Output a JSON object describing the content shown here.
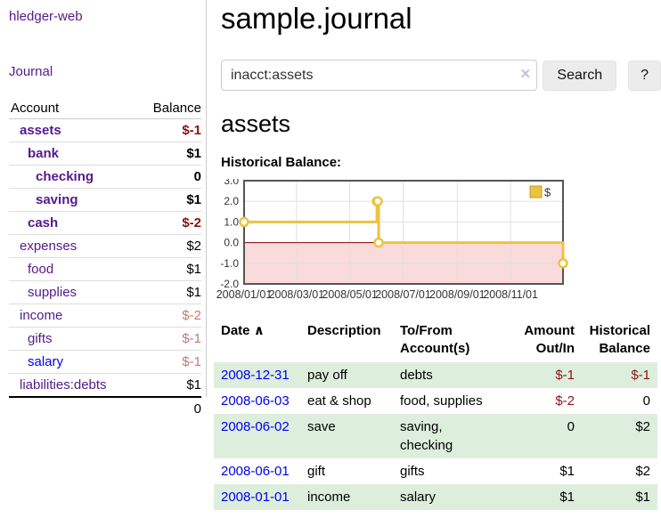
{
  "sidebar": {
    "brand": "hledger-web",
    "nav_journal": "Journal",
    "accounts": {
      "col_account": "Account",
      "col_balance": "Balance",
      "rows": [
        {
          "name": "assets",
          "balance": "$-1",
          "indent": 1,
          "bold": true,
          "balance_style": "neg-strong"
        },
        {
          "name": "bank",
          "balance": "$1",
          "indent": 2,
          "bold": true,
          "balance_style": "pos"
        },
        {
          "name": "checking",
          "balance": "0",
          "indent": 3,
          "bold": true,
          "balance_style": "pos"
        },
        {
          "name": "saving",
          "balance": "$1",
          "indent": 3,
          "bold": true,
          "balance_style": "pos"
        },
        {
          "name": "cash",
          "balance": "$-2",
          "indent": 2,
          "bold": true,
          "balance_style": "neg-strong"
        },
        {
          "name": "expenses",
          "balance": "$2",
          "indent": 1,
          "bold": false,
          "balance_style": "pos"
        },
        {
          "name": "food",
          "balance": "$1",
          "indent": 2,
          "bold": false,
          "balance_style": "pos"
        },
        {
          "name": "supplies",
          "balance": "$1",
          "indent": 2,
          "bold": false,
          "balance_style": "pos"
        },
        {
          "name": "income",
          "balance": "$-2",
          "indent": 1,
          "bold": false,
          "balance_style": "neg-soft"
        },
        {
          "name": "gifts",
          "balance": "$-1",
          "indent": 2,
          "bold": false,
          "balance_style": "neg-soft"
        },
        {
          "name": "salary",
          "balance": "$-1",
          "indent": 2,
          "bold": false,
          "balance_style": "neg-soft",
          "link_style": "blue"
        },
        {
          "name": "liabilities:debts",
          "balance": "$1",
          "indent": 1,
          "bold": false,
          "balance_style": "pos"
        }
      ],
      "total": "0"
    }
  },
  "main": {
    "title": "sample.journal",
    "search": {
      "value": "inacct:assets",
      "clear_icon": "×",
      "search_button": "Search",
      "help_button": "?"
    },
    "account_heading": "assets",
    "section_label": "Historical Balance:"
  },
  "chart_data": {
    "type": "line",
    "step": true,
    "title": "Historical Balance:",
    "series": [
      {
        "name": "$",
        "color": "#EDC240",
        "points": [
          [
            "2008-01-01",
            1
          ],
          [
            "2008-06-01",
            2
          ],
          [
            "2008-06-02",
            2
          ],
          [
            "2008-06-03",
            0
          ],
          [
            "2008-12-31",
            -1
          ]
        ]
      }
    ],
    "xlim": [
      "2008-01-01",
      "2008-12-31"
    ],
    "ylim": [
      -2,
      3
    ],
    "y_ticks": [
      {
        "v": 3,
        "label": "3.0"
      },
      {
        "v": 2,
        "label": "2.0"
      },
      {
        "v": 1,
        "label": "1.0"
      },
      {
        "v": 0,
        "label": "0.0"
      },
      {
        "v": -1,
        "label": "-1.0"
      },
      {
        "v": -2,
        "label": "-2.0"
      }
    ],
    "x_ticks": [
      {
        "date": "2008-01-01",
        "label": "2008/01/01"
      },
      {
        "date": "2008-03-01",
        "label": "2008/03/01"
      },
      {
        "date": "2008-05-01",
        "label": "2008/05/01"
      },
      {
        "date": "2008-07-01",
        "label": "2008/07/01"
      },
      {
        "date": "2008-09-01",
        "label": "2008/09/01"
      },
      {
        "date": "2008-11-01",
        "label": "2008/11/01"
      }
    ],
    "legend": {
      "label": "$",
      "position": "top-right"
    },
    "grid": true,
    "zero_line_color": "#8b0000",
    "negative_region_color": "#f9dbdb"
  },
  "register": {
    "headers": {
      "date": "Date",
      "sort_icon": "∧",
      "description": "Description",
      "accounts": "To/From Account(s)",
      "amount": "Amount Out/In",
      "balance": "Historical Balance"
    },
    "rows": [
      {
        "date": "2008-12-31",
        "description": "pay off",
        "accounts": "debts",
        "amount": "$-1",
        "amount_style": "neg",
        "balance": "$-1",
        "balance_style": "neg"
      },
      {
        "date": "2008-06-03",
        "description": "eat & shop",
        "accounts": "food, supplies",
        "amount": "$-2",
        "amount_style": "neg",
        "balance": "0",
        "balance_style": "pos"
      },
      {
        "date": "2008-06-02",
        "description": "save",
        "accounts": "saving, checking",
        "amount": "0",
        "amount_style": "pos",
        "balance": "$2",
        "balance_style": "pos"
      },
      {
        "date": "2008-06-01",
        "description": "gift",
        "accounts": "gifts",
        "amount": "$1",
        "amount_style": "pos",
        "balance": "$2",
        "balance_style": "pos"
      },
      {
        "date": "2008-01-01",
        "description": "income",
        "accounts": "salary",
        "amount": "$1",
        "amount_style": "pos",
        "balance": "$1",
        "balance_style": "pos"
      }
    ]
  }
}
